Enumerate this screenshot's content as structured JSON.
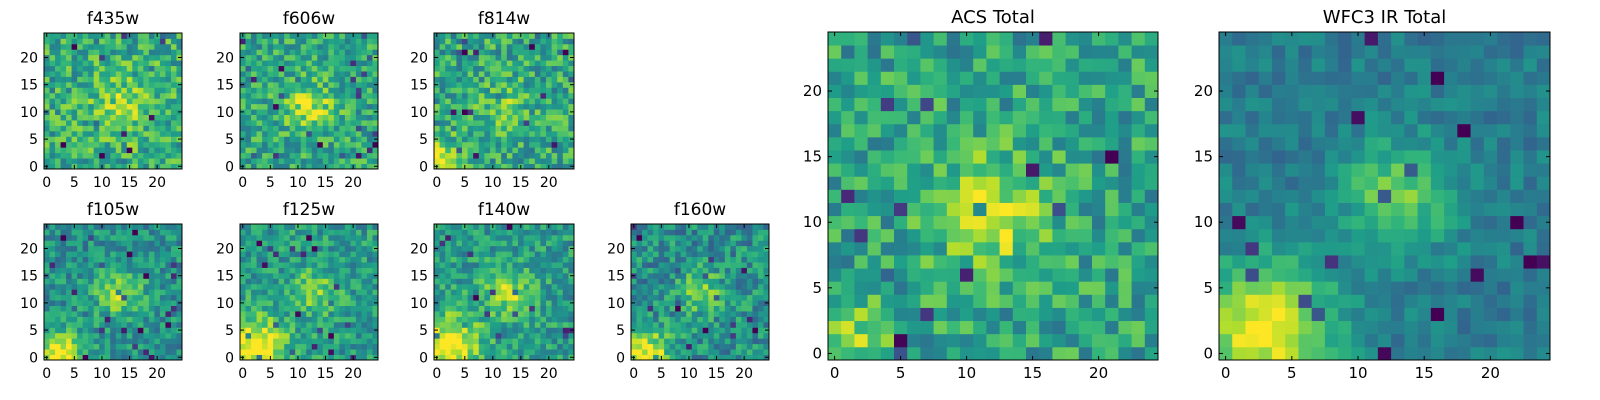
{
  "chart_data": [
    {
      "type": "heatmap",
      "title": "f435w",
      "x_ticks": [
        "0",
        "5",
        "10",
        "15",
        "20"
      ],
      "y_ticks": [
        "0",
        "5",
        "10",
        "15",
        "20"
      ],
      "xlim": [
        -0.5,
        24.5
      ],
      "ylim": [
        -0.5,
        24.5
      ],
      "grid_size": 25,
      "colormap": "viridis",
      "seed": 11,
      "blobs": [
        {
          "x": 14,
          "y": 11,
          "sigma": 4,
          "amp": 0.2
        }
      ],
      "noise": 0.22,
      "base": 0.62
    },
    {
      "type": "heatmap",
      "title": "f606w",
      "x_ticks": [
        "0",
        "5",
        "10",
        "15",
        "20"
      ],
      "y_ticks": [
        "0",
        "5",
        "10",
        "15",
        "20"
      ],
      "xlim": [
        -0.5,
        24.5
      ],
      "ylim": [
        -0.5,
        24.5
      ],
      "grid_size": 25,
      "colormap": "viridis",
      "seed": 22,
      "blobs": [
        {
          "x": 12,
          "y": 11,
          "sigma": 3,
          "amp": 0.3
        }
      ],
      "noise": 0.2,
      "base": 0.6
    },
    {
      "type": "heatmap",
      "title": "f814w",
      "x_ticks": [
        "0",
        "5",
        "10",
        "15",
        "20"
      ],
      "y_ticks": [
        "0",
        "5",
        "10",
        "15",
        "20"
      ],
      "xlim": [
        -0.5,
        24.5
      ],
      "ylim": [
        -0.5,
        24.5
      ],
      "grid_size": 25,
      "colormap": "viridis",
      "seed": 33,
      "blobs": [
        {
          "x": 1,
          "y": 1,
          "sigma": 2.5,
          "amp": 0.4
        },
        {
          "x": 12,
          "y": 11,
          "sigma": 3,
          "amp": 0.15
        }
      ],
      "noise": 0.22,
      "base": 0.6
    },
    {
      "type": "heatmap",
      "title": "f105w",
      "x_ticks": [
        "0",
        "5",
        "10",
        "15",
        "20"
      ],
      "y_ticks": [
        "0",
        "5",
        "10",
        "15",
        "20"
      ],
      "xlim": [
        -0.5,
        24.5
      ],
      "ylim": [
        -0.5,
        24.5
      ],
      "grid_size": 25,
      "colormap": "viridis",
      "seed": 44,
      "blobs": [
        {
          "x": 2,
          "y": 1,
          "sigma": 3,
          "amp": 0.5
        },
        {
          "x": 13,
          "y": 12,
          "sigma": 3,
          "amp": 0.35
        }
      ],
      "noise": 0.18,
      "base": 0.5
    },
    {
      "type": "heatmap",
      "title": "f125w",
      "x_ticks": [
        "0",
        "5",
        "10",
        "15",
        "20"
      ],
      "y_ticks": [
        "0",
        "5",
        "10",
        "15",
        "20"
      ],
      "xlim": [
        -0.5,
        24.5
      ],
      "ylim": [
        -0.5,
        24.5
      ],
      "grid_size": 25,
      "colormap": "viridis",
      "seed": 55,
      "blobs": [
        {
          "x": 2,
          "y": 2,
          "sigma": 4,
          "amp": 0.5
        },
        {
          "x": 13,
          "y": 12,
          "sigma": 3,
          "amp": 0.25
        }
      ],
      "noise": 0.18,
      "base": 0.55
    },
    {
      "type": "heatmap",
      "title": "f140w",
      "x_ticks": [
        "0",
        "5",
        "10",
        "15",
        "20"
      ],
      "y_ticks": [
        "0",
        "5",
        "10",
        "15",
        "20"
      ],
      "xlim": [
        -0.5,
        24.5
      ],
      "ylim": [
        -0.5,
        24.5
      ],
      "grid_size": 25,
      "colormap": "viridis",
      "seed": 66,
      "blobs": [
        {
          "x": 2,
          "y": 2,
          "sigma": 4,
          "amp": 0.5
        },
        {
          "x": 13,
          "y": 12,
          "sigma": 3,
          "amp": 0.3
        }
      ],
      "noise": 0.18,
      "base": 0.55
    },
    {
      "type": "heatmap",
      "title": "f160w",
      "x_ticks": [
        "0",
        "5",
        "10",
        "15",
        "20"
      ],
      "y_ticks": [
        "0",
        "5",
        "10",
        "15",
        "20"
      ],
      "xlim": [
        -0.5,
        24.5
      ],
      "ylim": [
        -0.5,
        24.5
      ],
      "grid_size": 25,
      "colormap": "viridis",
      "seed": 77,
      "blobs": [
        {
          "x": 2,
          "y": 1,
          "sigma": 3,
          "amp": 0.5
        },
        {
          "x": 12,
          "y": 12,
          "sigma": 3,
          "amp": 0.25
        }
      ],
      "noise": 0.2,
      "base": 0.5
    },
    {
      "type": "heatmap",
      "title": "ACS Total",
      "x_ticks": [
        "0",
        "5",
        "10",
        "15",
        "20"
      ],
      "y_ticks": [
        "0",
        "5",
        "10",
        "15",
        "20"
      ],
      "xlim": [
        -0.5,
        24.5
      ],
      "ylim": [
        -0.5,
        24.5
      ],
      "grid_size": 25,
      "colormap": "viridis",
      "seed": 88,
      "blobs": [
        {
          "x": 12,
          "y": 11,
          "sigma": 3,
          "amp": 0.35
        },
        {
          "x": 1,
          "y": 1,
          "sigma": 2,
          "amp": 0.3
        }
      ],
      "noise": 0.2,
      "base": 0.58
    },
    {
      "type": "heatmap",
      "title": "WFC3 IR Total",
      "x_ticks": [
        "0",
        "5",
        "10",
        "15",
        "20"
      ],
      "y_ticks": [
        "0",
        "5",
        "10",
        "15",
        "20"
      ],
      "xlim": [
        -0.5,
        24.5
      ],
      "ylim": [
        -0.5,
        24.5
      ],
      "grid_size": 25,
      "colormap": "viridis",
      "seed": 99,
      "blobs": [
        {
          "x": 3,
          "y": 2,
          "sigma": 3.5,
          "amp": 0.6
        },
        {
          "x": 13,
          "y": 12,
          "sigma": 3,
          "amp": 0.35
        }
      ],
      "noise": 0.1,
      "base": 0.42
    }
  ]
}
